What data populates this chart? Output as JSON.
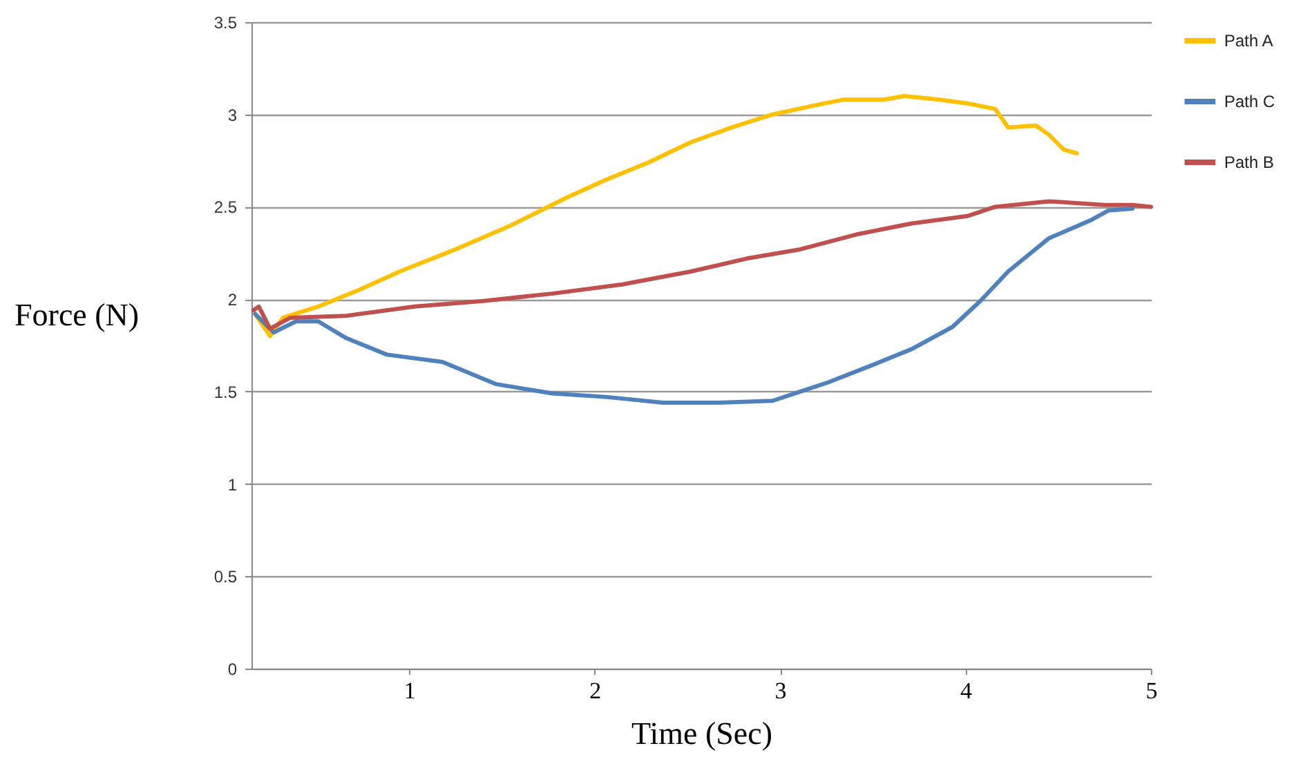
{
  "chart_data": {
    "type": "line",
    "xlabel": "Time (Sec)",
    "ylabel": "Force (N)",
    "xlim": [
      0.15,
      5
    ],
    "xticks": [
      1,
      2,
      3,
      4,
      5
    ],
    "ylim": [
      0,
      3.5
    ],
    "yticks": [
      0,
      0.5,
      1,
      1.5,
      2,
      2.5,
      3,
      3.5
    ],
    "grid": "y",
    "legend": "right",
    "marker": "none",
    "line_style": "solid",
    "series": [
      {
        "name": "Path A",
        "color": "#ffc000",
        "x": [
          0.17,
          0.25,
          0.32,
          0.51,
          0.73,
          0.95,
          1.25,
          1.55,
          1.85,
          2.07,
          2.29,
          2.52,
          2.74,
          2.96,
          3.19,
          3.34,
          3.56,
          3.67,
          3.86,
          4.01,
          4.16,
          4.23,
          4.38,
          4.45,
          4.53,
          4.6
        ],
        "values": [
          1.92,
          1.8,
          1.9,
          1.96,
          2.05,
          2.15,
          2.27,
          2.4,
          2.55,
          2.65,
          2.74,
          2.85,
          2.93,
          3.0,
          3.05,
          3.08,
          3.08,
          3.1,
          3.08,
          3.06,
          3.03,
          2.93,
          2.94,
          2.89,
          2.81,
          2.79
        ]
      },
      {
        "name": "Path C",
        "color": "#4f81bd",
        "x": [
          0.17,
          0.27,
          0.39,
          0.51,
          0.66,
          0.88,
          1.18,
          1.47,
          1.77,
          2.07,
          2.37,
          2.67,
          2.96,
          3.11,
          3.26,
          3.49,
          3.71,
          3.93,
          4.08,
          4.23,
          4.45,
          4.68,
          4.77,
          4.9
        ],
        "values": [
          1.92,
          1.82,
          1.88,
          1.88,
          1.79,
          1.7,
          1.66,
          1.54,
          1.49,
          1.47,
          1.44,
          1.44,
          1.45,
          1.5,
          1.55,
          1.64,
          1.73,
          1.85,
          1.99,
          2.15,
          2.33,
          2.43,
          2.48,
          2.49
        ]
      },
      {
        "name": "Path B",
        "color": "#c0504d",
        "x": [
          0.16,
          0.19,
          0.25,
          0.36,
          0.66,
          1.03,
          1.4,
          1.77,
          2.15,
          2.52,
          2.82,
          3.11,
          3.41,
          3.71,
          4.01,
          4.16,
          4.45,
          4.75,
          4.9,
          5.0
        ],
        "values": [
          1.94,
          1.96,
          1.84,
          1.9,
          1.91,
          1.96,
          1.99,
          2.03,
          2.08,
          2.15,
          2.22,
          2.27,
          2.35,
          2.41,
          2.45,
          2.5,
          2.53,
          2.51,
          2.51,
          2.5
        ]
      }
    ]
  }
}
